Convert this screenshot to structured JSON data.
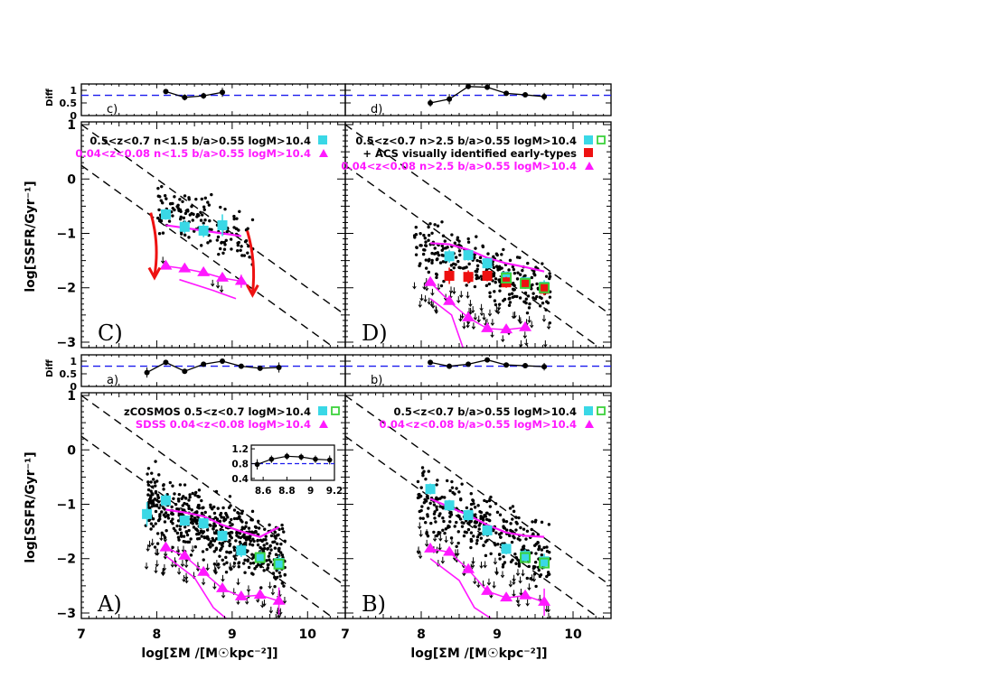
{
  "colors": {
    "cyan": "#3ad8e6",
    "magenta": "#ff19ff",
    "green": "#3cd23c",
    "red": "#ee1111",
    "blue": "#1a1aee",
    "black": "#000000"
  },
  "axes": {
    "ylabel": "log[SSFR/Gyr⁻¹]",
    "xlabel": "log[ΣM /[M☉kpc⁻²]]",
    "diff_label": "Diff",
    "xlim": [
      7,
      10.5
    ],
    "ylim": [
      -3.1,
      1.05
    ],
    "x_ticks": [
      "7",
      "8",
      "9",
      "10"
    ],
    "y_ticks": [
      "1",
      "0",
      "−1",
      "−2",
      "−3"
    ],
    "diff_ylim": [
      0,
      1.25
    ],
    "diff_ticks": [
      "1",
      "0.5",
      "0"
    ],
    "diff_ref": 0.8
  },
  "chart_data": [
    {
      "panel": "A",
      "type": "scatter",
      "label": "A)",
      "diff_label": "a)",
      "legend": [
        {
          "text": "zCOSMOS  0.5<z<0.7  logM>10.4",
          "color": "#000000",
          "symbols": [
            "cyan_square",
            "green_open_square"
          ]
        },
        {
          "text": "SDSS  0.04<z<0.08  logM>10.4",
          "color": "#ff19ff",
          "symbols": [
            "magenta_triangle"
          ]
        }
      ],
      "seed": 11,
      "n_points": 560,
      "n_limits": 70,
      "cloud": {
        "x": [
          7.85,
          9.7
        ],
        "center": [
          -0.95,
          -2.0
        ],
        "spread": 0.55
      },
      "cyan_series": {
        "x": [
          7.87,
          8.12,
          8.37,
          8.62,
          8.87,
          9.12,
          9.37,
          9.62
        ],
        "y": [
          -1.18,
          -0.93,
          -1.3,
          -1.35,
          -1.58,
          -1.85,
          -1.98,
          -2.08
        ],
        "err": [
          0.22,
          0.12,
          0.1,
          0.1,
          0.1,
          0.12,
          0.12,
          0.14
        ]
      },
      "green_series": {
        "x": [
          9.37,
          9.62
        ],
        "y": [
          -1.98,
          -2.1
        ]
      },
      "mag_line": {
        "x": [
          8.12,
          8.37,
          8.62,
          8.87,
          9.12,
          9.37,
          9.62
        ],
        "y": [
          -1.1,
          -1.15,
          -1.22,
          -1.38,
          -1.5,
          -1.6,
          -1.42
        ]
      },
      "mag_tri": {
        "x": [
          8.12,
          8.37,
          8.62,
          8.87,
          9.12,
          9.37,
          9.62
        ],
        "y": [
          -1.8,
          -1.95,
          -2.25,
          -2.55,
          -2.7,
          -2.67,
          -2.78
        ],
        "err": [
          0.05,
          0.05,
          0.05,
          0.05,
          0.05,
          0.06,
          0.25
        ]
      },
      "mag_low": {
        "x": [
          8.12,
          8.5,
          8.75,
          8.92
        ],
        "y": [
          -1.95,
          -2.35,
          -2.9,
          -3.1
        ]
      },
      "diff": {
        "x": [
          7.87,
          8.12,
          8.37,
          8.62,
          8.87,
          9.12,
          9.37,
          9.62
        ],
        "y": [
          0.55,
          0.95,
          0.6,
          0.88,
          1.0,
          0.8,
          0.72,
          0.75
        ],
        "err": [
          0.2,
          0.05,
          0.05,
          0.05,
          0.05,
          0.05,
          0.05,
          0.2
        ]
      },
      "inset": {
        "x": [
          8.55,
          8.67,
          8.8,
          8.92,
          9.04,
          9.16
        ],
        "y": [
          0.78,
          0.92,
          1.0,
          0.98,
          0.92,
          0.9
        ],
        "err": [
          0.14,
          0.1,
          0.09,
          0.09,
          0.1,
          0.12
        ],
        "xlim": [
          8.5,
          9.2
        ],
        "ylim": [
          0.35,
          1.3
        ],
        "x_ticks": [
          "8.6",
          "8.8",
          "9",
          "9.2"
        ],
        "y_ticks": [
          "1.2",
          "0.8",
          "0.4"
        ]
      }
    },
    {
      "panel": "B",
      "type": "scatter",
      "label": "B)",
      "diff_label": "b)",
      "legend": [
        {
          "text": "0.5<z<0.7  b/a>0.55  logM>10.4",
          "color": "#000000",
          "symbols": [
            "cyan_square",
            "green_open_square"
          ]
        },
        {
          "text": "0.04<z<0.08  b/a>0.55  logM>10.4",
          "color": "#ff19ff",
          "symbols": [
            "magenta_triangle"
          ]
        }
      ],
      "seed": 23,
      "n_points": 330,
      "n_limits": 55,
      "cloud": {
        "x": [
          7.95,
          9.7
        ],
        "center": [
          -0.85,
          -2.0
        ],
        "spread": 0.55
      },
      "cyan_series": {
        "x": [
          8.12,
          8.37,
          8.62,
          8.87,
          9.12,
          9.37,
          9.62
        ],
        "y": [
          -0.72,
          -1.02,
          -1.2,
          -1.48,
          -1.82,
          -1.95,
          -2.05
        ],
        "err": [
          0.1,
          0.1,
          0.1,
          0.1,
          0.1,
          0.12,
          0.14
        ]
      },
      "green_series": {
        "x": [
          9.37,
          9.62
        ],
        "y": [
          -1.98,
          -2.08
        ]
      },
      "mag_line": {
        "x": [
          8.12,
          8.37,
          8.62,
          8.87,
          9.12,
          9.37,
          9.62
        ],
        "y": [
          -0.9,
          -1.05,
          -1.2,
          -1.38,
          -1.52,
          -1.58,
          -1.6
        ]
      },
      "mag_tri": {
        "x": [
          8.12,
          8.37,
          8.62,
          8.87,
          9.12,
          9.37,
          9.62
        ],
        "y": [
          -1.82,
          -1.88,
          -2.2,
          -2.6,
          -2.72,
          -2.68,
          -2.8
        ],
        "err": [
          0.05,
          0.05,
          0.05,
          0.05,
          0.05,
          0.06,
          0.25
        ]
      },
      "mag_low": {
        "x": [
          8.12,
          8.5,
          8.7,
          8.92
        ],
        "y": [
          -2.0,
          -2.4,
          -2.9,
          -3.1
        ]
      },
      "diff": {
        "x": [
          8.12,
          8.37,
          8.62,
          8.87,
          9.12,
          9.37,
          9.62
        ],
        "y": [
          0.95,
          0.8,
          0.88,
          1.05,
          0.85,
          0.82,
          0.78
        ],
        "err": [
          0.05,
          0.1,
          0.05,
          0.08,
          0.05,
          0.05,
          0.15
        ]
      }
    },
    {
      "panel": "C",
      "type": "scatter",
      "label": "C)",
      "diff_label": "c)",
      "legend": [
        {
          "text": "0.5<z<0.7  n<1.5  b/a>0.55  logM>10.4",
          "color": "#000000",
          "symbols": [
            "cyan_square"
          ]
        },
        {
          "text": "0.04<z<0.08  n<1.5  b/a>0.55  logM>10.4",
          "color": "#ff19ff",
          "symbols": [
            "magenta_triangle"
          ]
        }
      ],
      "seed": 37,
      "n_points": 150,
      "n_limits": 4,
      "cloud": {
        "x": [
          8.0,
          9.3
        ],
        "center": [
          -0.5,
          -1.2
        ],
        "spread": 0.42
      },
      "cyan_series": {
        "x": [
          8.12,
          8.37,
          8.62,
          8.87
        ],
        "y": [
          -0.65,
          -0.88,
          -0.95,
          -0.85
        ],
        "err": [
          0.1,
          0.12,
          0.12,
          0.2
        ]
      },
      "mag_line": {
        "x": [
          8.12,
          8.37,
          8.62,
          8.87,
          9.12
        ],
        "y": [
          -0.85,
          -0.9,
          -0.95,
          -1.0,
          -1.05
        ]
      },
      "mag_tri": {
        "x": [
          8.12,
          8.37,
          8.62,
          8.87,
          9.12
        ],
        "y": [
          -1.6,
          -1.65,
          -1.72,
          -1.82,
          -1.88
        ],
        "err": [
          0.05,
          0.05,
          0.05,
          0.05,
          0.12
        ]
      },
      "mag_low": {
        "x": [
          8.3,
          8.75,
          9.05
        ],
        "y": [
          -1.85,
          -2.05,
          -2.2
        ]
      },
      "arrows": [
        {
          "x0": 7.92,
          "y0": -0.62,
          "x1": 7.97,
          "y1": -1.78
        },
        {
          "x0": 9.2,
          "y0": -0.95,
          "x1": 9.27,
          "y1": -2.1
        }
      ],
      "diff": {
        "x": [
          8.12,
          8.37,
          8.62,
          8.87
        ],
        "y": [
          0.95,
          0.72,
          0.78,
          0.92
        ],
        "err": [
          0.05,
          0.12,
          0.12,
          0.18
        ]
      }
    },
    {
      "panel": "D",
      "type": "scatter",
      "label": "D)",
      "diff_label": "d)",
      "legend": [
        {
          "text": "0.5<z<0.7  n>2.5  b/a>0.55  logM>10.4",
          "color": "#000000",
          "symbols": [
            "cyan_square",
            "green_open_square"
          ]
        },
        {
          "text": "+ ACS visually identified early-types",
          "color": "#000000",
          "symbols": [
            "red_square"
          ]
        },
        {
          "text": "0.04<z<0.08  n>2.5  b/a>0.55  logM>10.4",
          "color": "#ff19ff",
          "symbols": [
            "magenta_triangle"
          ]
        }
      ],
      "seed": 53,
      "n_points": 260,
      "n_limits": 60,
      "cloud": {
        "x": [
          7.9,
          9.7
        ],
        "center": [
          -1.15,
          -2.1
        ],
        "spread": 0.5
      },
      "cyan_series": {
        "x": [
          8.37,
          8.62,
          8.87,
          9.12,
          9.37,
          9.62
        ],
        "y": [
          -1.42,
          -1.4,
          -1.55,
          -1.8,
          -1.9,
          -1.98
        ],
        "err": [
          0.12,
          0.1,
          0.1,
          0.1,
          0.1,
          0.12
        ]
      },
      "green_series": {
        "x": [
          9.12,
          9.37,
          9.62
        ],
        "y": [
          -1.82,
          -1.92,
          -2.0
        ]
      },
      "red_series": {
        "x": [
          8.37,
          8.62,
          8.87,
          9.12,
          9.37,
          9.62
        ],
        "y": [
          -1.78,
          -1.8,
          -1.78,
          -1.9,
          -1.92,
          -2.02
        ],
        "err": [
          0.15,
          0.12,
          0.1,
          0.1,
          0.1,
          0.12
        ]
      },
      "mag_line": {
        "x": [
          8.12,
          8.37,
          8.62,
          8.87,
          9.12,
          9.37,
          9.62
        ],
        "y": [
          -1.18,
          -1.2,
          -1.3,
          -1.45,
          -1.55,
          -1.62,
          -1.7
        ]
      },
      "mag_tri": {
        "x": [
          8.12,
          8.37,
          8.62,
          8.87,
          9.12,
          9.37
        ],
        "y": [
          -1.9,
          -2.25,
          -2.55,
          -2.75,
          -2.77,
          -2.73
        ],
        "err": [
          0.05,
          0.05,
          0.05,
          0.05,
          0.05,
          0.06
        ]
      },
      "mag_low": {
        "x": [
          8.12,
          8.4,
          8.5,
          8.55
        ],
        "y": [
          -2.2,
          -2.5,
          -2.9,
          -3.1
        ]
      },
      "diff": {
        "x": [
          8.12,
          8.37,
          8.62,
          8.87,
          9.12,
          9.37,
          9.62
        ],
        "y": [
          0.5,
          0.65,
          1.15,
          1.12,
          0.88,
          0.82,
          0.75
        ],
        "err": [
          0.15,
          0.2,
          0.1,
          0.1,
          0.05,
          0.08,
          0.15
        ]
      }
    }
  ]
}
